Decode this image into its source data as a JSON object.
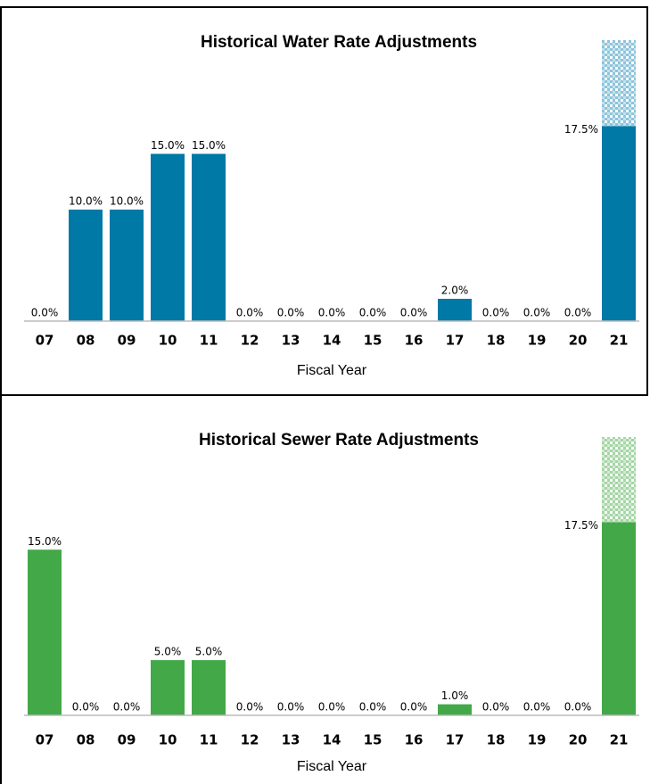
{
  "chart_data": [
    {
      "type": "bar",
      "stacked": true,
      "title": "Historical Water Rate Adjustments",
      "x_label": "Fiscal Year",
      "categories": [
        "07",
        "08",
        "09",
        "10",
        "11",
        "12",
        "13",
        "14",
        "15",
        "16",
        "17",
        "18",
        "19",
        "20",
        "21"
      ],
      "series": [
        {
          "color": "#0079a6",
          "values": [
            0,
            10,
            10,
            15,
            15,
            0,
            0,
            0,
            0,
            0,
            2,
            0,
            0,
            0,
            17.5
          ],
          "value_labels": [
            "0.0%",
            "10.0%",
            "10.0%",
            "15.0%",
            "15.0%",
            "0.0%",
            "0.0%",
            "0.0%",
            "0.0%",
            "0.0%",
            "2.0%",
            "0.0%",
            "0.0%",
            "0.0%",
            "17.5%"
          ]
        },
        {
          "color": "#8cc4dc",
          "hatch": true,
          "values": [
            null,
            null,
            null,
            null,
            null,
            null,
            null,
            null,
            null,
            null,
            null,
            null,
            null,
            null,
            7.7
          ]
        }
      ],
      "ylim": [
        0,
        25.2
      ]
    },
    {
      "type": "bar",
      "stacked": true,
      "title": "Historical Sewer Rate Adjustments",
      "x_label": "Fiscal Year",
      "categories": [
        "07",
        "08",
        "09",
        "10",
        "11",
        "12",
        "13",
        "14",
        "15",
        "16",
        "17",
        "18",
        "19",
        "20",
        "21"
      ],
      "series": [
        {
          "color": "#43a847",
          "values": [
            15,
            0,
            0,
            5,
            5,
            0,
            0,
            0,
            0,
            0,
            1,
            0,
            0,
            0,
            17.5
          ],
          "value_labels": [
            "15.0%",
            "0.0%",
            "0.0%",
            "5.0%",
            "5.0%",
            "0.0%",
            "0.0%",
            "0.0%",
            "0.0%",
            "0.0%",
            "1.0%",
            "0.0%",
            "0.0%",
            "0.0%",
            "17.5%"
          ]
        },
        {
          "color": "#a3d6a3",
          "hatch": true,
          "values": [
            null,
            null,
            null,
            null,
            null,
            null,
            null,
            null,
            null,
            null,
            null,
            null,
            null,
            null,
            7.7
          ]
        }
      ],
      "ylim": [
        0,
        25.2
      ]
    }
  ]
}
